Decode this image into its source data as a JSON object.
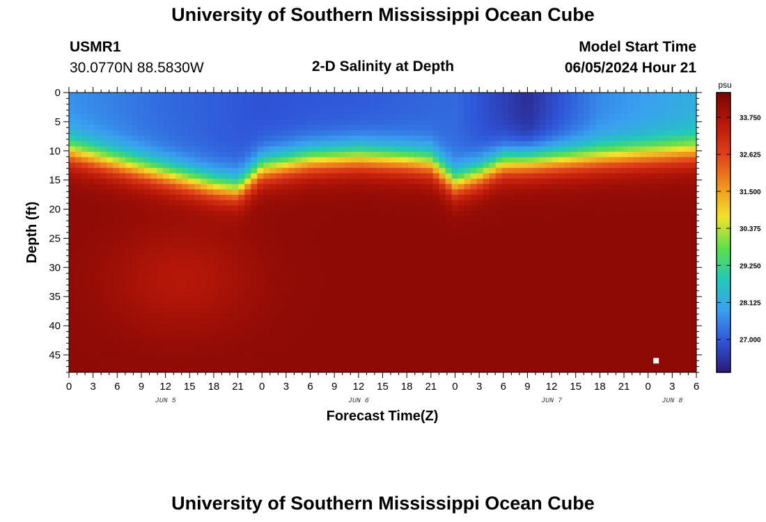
{
  "header": {
    "title": "University of Southern Mississippi Ocean Cube",
    "station_id": "USMR1",
    "coordinates": "30.0770N  88.5830W",
    "subtitle": "2-D Salinity at Depth",
    "start_label": "Model Start Time",
    "start_time": "06/05/2024 Hour 21"
  },
  "footer": {
    "title": "University of Southern Mississippi Ocean Cube"
  },
  "chart_data": {
    "type": "heatmap",
    "title": "2-D Salinity at Depth",
    "xlabel": "Forecast Time(Z)",
    "ylabel": "Depth (ft)",
    "xlim": [
      0,
      78
    ],
    "ylim": [
      0,
      48
    ],
    "x_ticks": [
      0,
      3,
      6,
      9,
      12,
      15,
      18,
      21,
      24,
      27,
      30,
      33,
      36,
      39,
      42,
      45,
      48,
      51,
      54,
      57,
      60,
      63,
      66,
      69,
      72,
      75,
      78
    ],
    "x_tick_labels": [
      "0",
      "3",
      "6",
      "9",
      "12",
      "15",
      "18",
      "21",
      "0",
      "3",
      "6",
      "9",
      "12",
      "15",
      "18",
      "21",
      "0",
      "3",
      "6",
      "9",
      "12",
      "15",
      "18",
      "21",
      "0",
      "3",
      "6"
    ],
    "y_ticks": [
      0,
      5,
      10,
      15,
      20,
      25,
      30,
      35,
      40,
      45
    ],
    "y_tick_labels": [
      "0",
      "5",
      "10",
      "15",
      "20",
      "25",
      "30",
      "35",
      "40",
      "45"
    ],
    "day_labels": [
      {
        "label": "JUN 5",
        "hour": 12
      },
      {
        "label": "JUN 6",
        "hour": 36
      },
      {
        "label": "JUN 7",
        "hour": 60
      },
      {
        "label": "JUN 8",
        "hour": 75
      }
    ],
    "colorbar": {
      "unit": "psu",
      "min": 26.0,
      "max": 34.5,
      "ticks": [
        27.0,
        28.125,
        29.25,
        30.375,
        31.5,
        32.625,
        33.75
      ],
      "tick_labels": [
        "27.000",
        "28.125",
        "29.250",
        "30.375",
        "31.500",
        "32.625",
        "33.750"
      ],
      "colors": [
        "#2a1a78",
        "#2f55d8",
        "#3aa0f0",
        "#22c9b8",
        "#5ee04a",
        "#f2e22c",
        "#f0921e",
        "#e0401a",
        "#b81808",
        "#7a0404"
      ]
    },
    "halocline_depth_ft": [
      {
        "hour": 0,
        "depth": 10
      },
      {
        "hour": 6,
        "depth": 12
      },
      {
        "hour": 12,
        "depth": 14
      },
      {
        "hour": 18,
        "depth": 16
      },
      {
        "hour": 21,
        "depth": 16.5
      },
      {
        "hour": 24,
        "depth": 13
      },
      {
        "hour": 30,
        "depth": 11.5
      },
      {
        "hour": 36,
        "depth": 11
      },
      {
        "hour": 42,
        "depth": 11.5
      },
      {
        "hour": 45,
        "depth": 12
      },
      {
        "hour": 48,
        "depth": 15.5
      },
      {
        "hour": 51,
        "depth": 14
      },
      {
        "hour": 54,
        "depth": 12
      },
      {
        "hour": 60,
        "depth": 11.5
      },
      {
        "hour": 66,
        "depth": 11
      },
      {
        "hour": 72,
        "depth": 10.5
      },
      {
        "hour": 78,
        "depth": 10
      }
    ],
    "surface_salinity_psu": [
      {
        "hour": 0,
        "value": 27.7
      },
      {
        "hour": 12,
        "value": 27.2
      },
      {
        "hour": 24,
        "value": 26.9
      },
      {
        "hour": 36,
        "value": 27.0
      },
      {
        "hour": 48,
        "value": 27.2
      },
      {
        "hour": 57,
        "value": 26.3
      },
      {
        "hour": 66,
        "value": 27.6
      },
      {
        "hour": 78,
        "value": 28.2
      }
    ],
    "bottom_salinity_psu": 34.2,
    "missing_marker": {
      "hour": 73,
      "depth": 46
    }
  }
}
